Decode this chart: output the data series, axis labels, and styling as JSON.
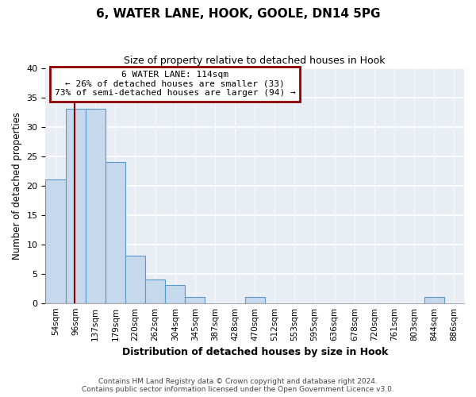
{
  "title": "6, WATER LANE, HOOK, GOOLE, DN14 5PG",
  "subtitle": "Size of property relative to detached houses in Hook",
  "xlabel": "Distribution of detached houses by size in Hook",
  "ylabel": "Number of detached properties",
  "bin_labels": [
    "54sqm",
    "96sqm",
    "137sqm",
    "179sqm",
    "220sqm",
    "262sqm",
    "304sqm",
    "345sqm",
    "387sqm",
    "428sqm",
    "470sqm",
    "512sqm",
    "553sqm",
    "595sqm",
    "636sqm",
    "678sqm",
    "720sqm",
    "761sqm",
    "803sqm",
    "844sqm",
    "886sqm"
  ],
  "bar_heights": [
    21,
    33,
    33,
    24,
    8,
    4,
    3,
    1,
    0,
    0,
    1,
    0,
    0,
    0,
    0,
    0,
    0,
    0,
    0,
    1,
    0
  ],
  "bar_color": "#c5d8ec",
  "bar_edge_color": "#5a9ac8",
  "property_line_color": "#8b0000",
  "annotation_title": "6 WATER LANE: 114sqm",
  "annotation_line1": "← 26% of detached houses are smaller (33)",
  "annotation_line2": "73% of semi-detached houses are larger (94) →",
  "annotation_box_edgecolor": "#8b0000",
  "ylim": [
    0,
    40
  ],
  "yticks": [
    0,
    5,
    10,
    15,
    20,
    25,
    30,
    35,
    40
  ],
  "footnote1": "Contains HM Land Registry data © Crown copyright and database right 2024.",
  "footnote2": "Contains public sector information licensed under the Open Government Licence v3.0.",
  "bg_color": "#e8eef4"
}
